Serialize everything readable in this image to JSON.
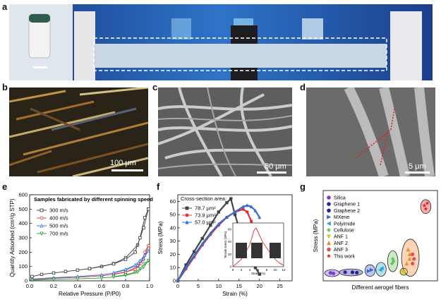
{
  "panels": {
    "a": {
      "letter": "a"
    },
    "b": {
      "letter": "b",
      "scale_label": "100 μm"
    },
    "c": {
      "letter": "c",
      "scale_label": "50 μm"
    },
    "d": {
      "letter": "d",
      "scale_label": "5 μm"
    },
    "e": {
      "letter": "e"
    },
    "f": {
      "letter": "f"
    },
    "g": {
      "letter": "g"
    }
  },
  "chart_data": [
    {
      "panel": "e",
      "type": "line",
      "title": "Samples fabricated by different spinning speed",
      "xlabel": "Relative Pressure (P/P0)",
      "ylabel": "Quantity Adsorbed (cm³/g STP)",
      "xlim": [
        0.0,
        1.0
      ],
      "ylim": [
        0,
        600
      ],
      "xticks": [
        "0.0",
        "0.2",
        "0.4",
        "0.6",
        "0.8",
        "1.0"
      ],
      "yticks": [
        "0",
        "100",
        "200",
        "300",
        "400",
        "500",
        "600"
      ],
      "legend_position": "top-left",
      "series": [
        {
          "name": "300 m/s",
          "color": "#333333",
          "marker": "square",
          "adsorption": [
            [
              0.02,
              30
            ],
            [
              0.1,
              45
            ],
            [
              0.2,
              55
            ],
            [
              0.3,
              65
            ],
            [
              0.4,
              75
            ],
            [
              0.5,
              85
            ],
            [
              0.6,
              100
            ],
            [
              0.7,
              120
            ],
            [
              0.8,
              160
            ],
            [
              0.9,
              250
            ],
            [
              0.95,
              370
            ],
            [
              0.99,
              500
            ]
          ],
          "desorption": [
            [
              0.99,
              500
            ],
            [
              0.96,
              440
            ],
            [
              0.92,
              300
            ],
            [
              0.88,
              200
            ],
            [
              0.8,
              150
            ],
            [
              0.7,
              118
            ],
            [
              0.5,
              85
            ]
          ]
        },
        {
          "name": "400 m/s",
          "color": "#e03030",
          "marker": "circle",
          "adsorption": [
            [
              0.02,
              10
            ],
            [
              0.2,
              18
            ],
            [
              0.4,
              25
            ],
            [
              0.6,
              35
            ],
            [
              0.7,
              45
            ],
            [
              0.8,
              60
            ],
            [
              0.9,
              100
            ],
            [
              0.95,
              150
            ],
            [
              0.99,
              245
            ]
          ],
          "desorption": [
            [
              0.99,
              245
            ],
            [
              0.96,
              200
            ],
            [
              0.93,
              120
            ],
            [
              0.88,
              80
            ],
            [
              0.8,
              62
            ],
            [
              0.7,
              47
            ]
          ]
        },
        {
          "name": "500 m/s",
          "color": "#2e6fd6",
          "marker": "triangle",
          "adsorption": [
            [
              0.02,
              12
            ],
            [
              0.2,
              22
            ],
            [
              0.4,
              30
            ],
            [
              0.6,
              42
            ],
            [
              0.7,
              55
            ],
            [
              0.8,
              75
            ],
            [
              0.9,
              110
            ],
            [
              0.95,
              155
            ],
            [
              0.99,
              210
            ]
          ],
          "desorption": [
            [
              0.99,
              210
            ],
            [
              0.96,
              180
            ],
            [
              0.92,
              140
            ],
            [
              0.88,
              110
            ],
            [
              0.8,
              80
            ],
            [
              0.7,
              57
            ]
          ]
        },
        {
          "name": "700 m/s",
          "color": "#2a9a3a",
          "marker": "triangle-down",
          "adsorption": [
            [
              0.02,
              5
            ],
            [
              0.2,
              10
            ],
            [
              0.4,
              14
            ],
            [
              0.6,
              20
            ],
            [
              0.7,
              27
            ],
            [
              0.8,
              38
            ],
            [
              0.9,
              60
            ],
            [
              0.95,
              95
            ],
            [
              0.99,
              140
            ]
          ],
          "desorption": [
            [
              0.99,
              140
            ],
            [
              0.96,
              120
            ],
            [
              0.92,
              85
            ],
            [
              0.88,
              60
            ],
            [
              0.8,
              42
            ],
            [
              0.7,
              29
            ]
          ]
        }
      ]
    },
    {
      "panel": "f",
      "type": "line",
      "title": "",
      "xlabel": "Strain (%)",
      "ylabel": "Stress (MPa)",
      "xlim": [
        0,
        28
      ],
      "ylim": [
        0,
        65
      ],
      "xticks": [
        "0",
        "5",
        "10",
        "15",
        "20",
        "25"
      ],
      "yticks": [
        "0",
        "10",
        "20",
        "30",
        "40",
        "50",
        "60"
      ],
      "legend_title": "Cross-section area:",
      "legend_position": "top-left",
      "series": [
        {
          "name": "78.7 μm²",
          "color": "#444444",
          "marker": "square",
          "points": [
            [
              0,
              0
            ],
            [
              2,
              12
            ],
            [
              4,
              22
            ],
            [
              6,
              32
            ],
            [
              8,
              42
            ],
            [
              10,
              52
            ],
            [
              12,
              59
            ],
            [
              13,
              62
            ],
            [
              14,
              50
            ],
            [
              15,
              40
            ],
            [
              16,
              30
            ],
            [
              17,
              22
            ],
            [
              18,
              15
            ],
            [
              19,
              10
            ],
            [
              20,
              5
            ]
          ]
        },
        {
          "name": "73.9 μm²",
          "color": "#e03030",
          "marker": "circle",
          "points": [
            [
              0,
              0
            ],
            [
              2,
              9
            ],
            [
              4,
              18
            ],
            [
              6,
              27
            ],
            [
              8,
              35
            ],
            [
              10,
              42
            ],
            [
              12,
              48
            ],
            [
              14,
              52
            ],
            [
              16,
              54
            ],
            [
              17,
              52
            ],
            [
              18,
              45
            ],
            [
              19,
              35
            ]
          ]
        },
        {
          "name": "57.0 μm²",
          "color": "#2e6fd6",
          "marker": "triangle",
          "points": [
            [
              0,
              0
            ],
            [
              2,
              10
            ],
            [
              4,
              19
            ],
            [
              6,
              28
            ],
            [
              8,
              36
            ],
            [
              10,
              43
            ],
            [
              12,
              48
            ],
            [
              14,
              52
            ],
            [
              16,
              56
            ],
            [
              17,
              57
            ],
            [
              18,
              56
            ],
            [
              19,
              53
            ],
            [
              20,
              48
            ]
          ]
        }
      ],
      "inset": {
        "xlabel": "Strain (%)",
        "ylabel": "Tensile stress (MPa)",
        "xticks": [
          "0",
          "2",
          "4",
          "6",
          "8",
          "10",
          "12"
        ],
        "yticks": [
          "0",
          "20",
          "40",
          "60"
        ],
        "points": [
          [
            0,
            0
          ],
          [
            2,
            12
          ],
          [
            4,
            35
          ],
          [
            5,
            58
          ],
          [
            5.5,
            62
          ],
          [
            6,
            55
          ],
          [
            7,
            40
          ],
          [
            8,
            30
          ],
          [
            9,
            20
          ],
          [
            10,
            12
          ],
          [
            11,
            6
          ],
          [
            12,
            2
          ]
        ]
      }
    },
    {
      "panel": "g",
      "type": "scatter",
      "title": "",
      "xlabel": "Different aerogel fibers",
      "ylabel": "Stress (MPa)",
      "legend_position": "top-left",
      "series": [
        {
          "name": "Silica",
          "color": "#7a3fd1",
          "marker": "circle",
          "points": [
            [
              1,
              2
            ],
            [
              1.2,
              1.5
            ]
          ]
        },
        {
          "name": "Graphene 1",
          "color": "#3a1fa0",
          "marker": "circle",
          "points": [
            [
              2,
              2.5
            ]
          ]
        },
        {
          "name": "Graphene 2",
          "color": "#1e2a8a",
          "marker": "circle",
          "points": [
            [
              2.5,
              2.5
            ],
            [
              2.8,
              2.2
            ]
          ]
        },
        {
          "name": "MXene",
          "color": "#3a60d8",
          "marker": "triangle-right",
          "points": [
            [
              3.6,
              3.5
            ],
            [
              3.8,
              4.5
            ]
          ]
        },
        {
          "name": "Polyimide",
          "color": "#2aa7c9",
          "marker": "triangle-left",
          "points": [
            [
              4.4,
              4.5
            ],
            [
              4.5,
              6
            ]
          ]
        },
        {
          "name": "Cellulose",
          "color": "#6ac462",
          "marker": "diamond",
          "points": [
            [
              5.2,
              10
            ],
            [
              5.3,
              12
            ],
            [
              5.25,
              14
            ]
          ]
        },
        {
          "name": "ANF 1",
          "color": "#d8c620",
          "marker": "triangle-down",
          "points": [
            [
              5.9,
              3
            ],
            [
              6.0,
              2
            ]
          ]
        },
        {
          "name": "ANF 2",
          "color": "#f08a30",
          "marker": "triangle",
          "points": [
            [
              6.2,
              10
            ],
            [
              6.4,
              14
            ],
            [
              6.4,
              18
            ],
            [
              6.3,
              22
            ]
          ]
        },
        {
          "name": "ANF 3",
          "color": "#e05050",
          "marker": "circle",
          "points": [
            [
              6.6,
              10
            ],
            [
              6.7,
              14
            ],
            [
              6.6,
              18
            ]
          ]
        },
        {
          "name": "This work",
          "color": "#e02020",
          "marker": "star",
          "points": [
            [
              7.5,
              57
            ],
            [
              7.6,
              62
            ],
            [
              7.4,
              60
            ]
          ]
        }
      ]
    }
  ]
}
